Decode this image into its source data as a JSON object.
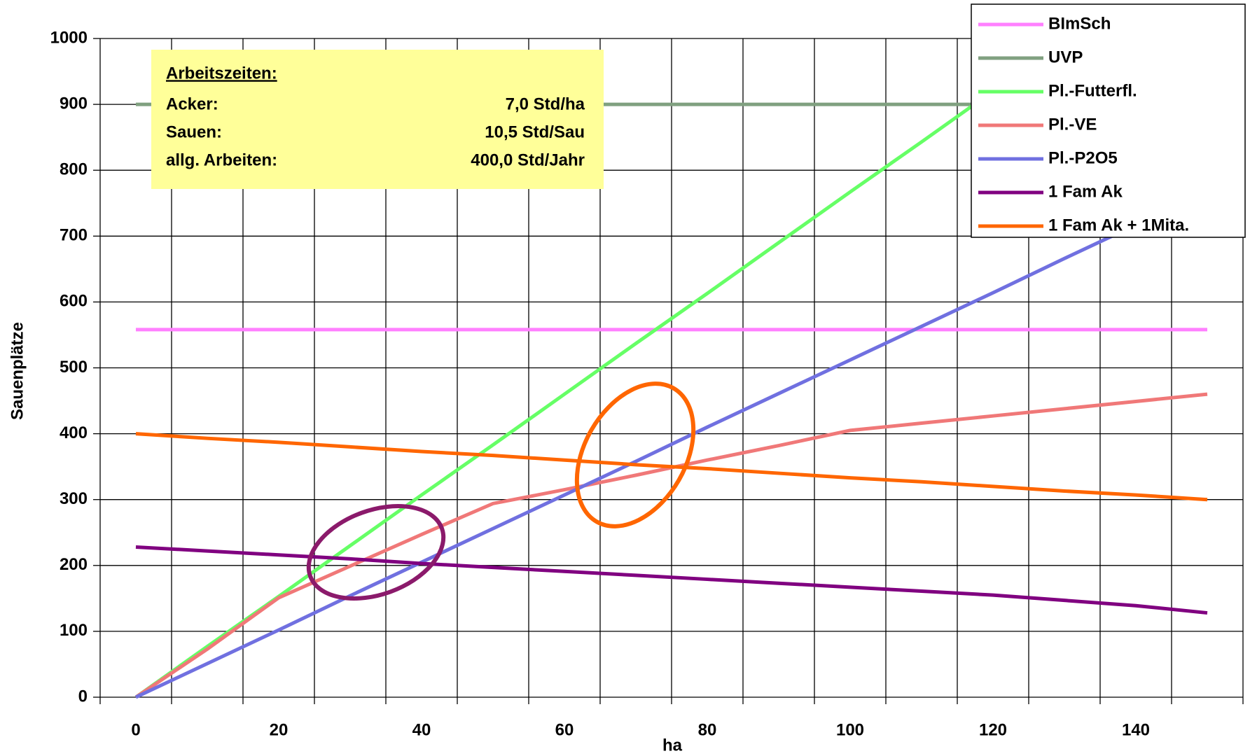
{
  "chart_data": {
    "type": "line",
    "x_label": "ha",
    "y_label": "Sauenplätze",
    "categories": [
      "0",
      null,
      "20",
      null,
      "40",
      null,
      "60",
      null,
      "80",
      null,
      "100",
      null,
      "120",
      null,
      "140",
      null
    ],
    "ylim": [
      0,
      1000
    ],
    "yticks": [
      0,
      100,
      200,
      300,
      400,
      500,
      600,
      700,
      800,
      900,
      1000
    ],
    "grid": true,
    "series": [
      {
        "name": "BImSch",
        "color": "#ff80ff",
        "values": [
          558,
          558,
          558,
          558,
          558,
          558,
          558,
          558,
          558,
          558,
          558,
          558,
          558,
          558,
          558,
          558
        ]
      },
      {
        "name": "UVP",
        "color": "#80a080",
        "values": [
          900,
          900,
          900,
          900,
          900,
          900,
          900,
          900,
          900,
          900,
          900,
          900,
          900,
          900,
          900,
          900
        ]
      },
      {
        "name": "Pl.-Futterfl.",
        "color": "#66ff66",
        "values": [
          0,
          77,
          153,
          230,
          307,
          383,
          460,
          537,
          613,
          690,
          767,
          843,
          920,
          997,
          null,
          null
        ]
      },
      {
        "name": "Pl.-VE",
        "color": "#f07878",
        "values": [
          0,
          73,
          151,
          199,
          247,
          294,
          315,
          337,
          360,
          382,
          405,
          416,
          427,
          438,
          449,
          460
        ]
      },
      {
        "name": "Pl.-P2O5",
        "color": "#7070e0",
        "values": [
          0,
          51,
          102,
          154,
          205,
          256,
          307,
          358,
          410,
          461,
          512,
          563,
          614,
          666,
          717,
          768
        ]
      },
      {
        "name": "1 Fam Ak",
        "color": "#800080",
        "values": [
          228,
          222,
          216,
          210,
          203,
          197,
          191,
          185,
          179,
          173,
          167,
          161,
          155,
          147,
          139,
          128
        ]
      },
      {
        "name": "1 Fam Ak + 1Mita.",
        "color": "#ff6600",
        "values": [
          400,
          393,
          387,
          380,
          373,
          367,
          360,
          353,
          347,
          340,
          333,
          327,
          320,
          313,
          307,
          300
        ]
      }
    ],
    "annotation": {
      "title": "Arbeitszeiten:",
      "rows": [
        [
          "Acker:",
          "7,0 Std/ha"
        ],
        [
          "Sauen:",
          "10,5 Std/Sau"
        ],
        [
          "allg. Arbeiten:",
          "400,0 Std/Jahr"
        ]
      ]
    }
  }
}
